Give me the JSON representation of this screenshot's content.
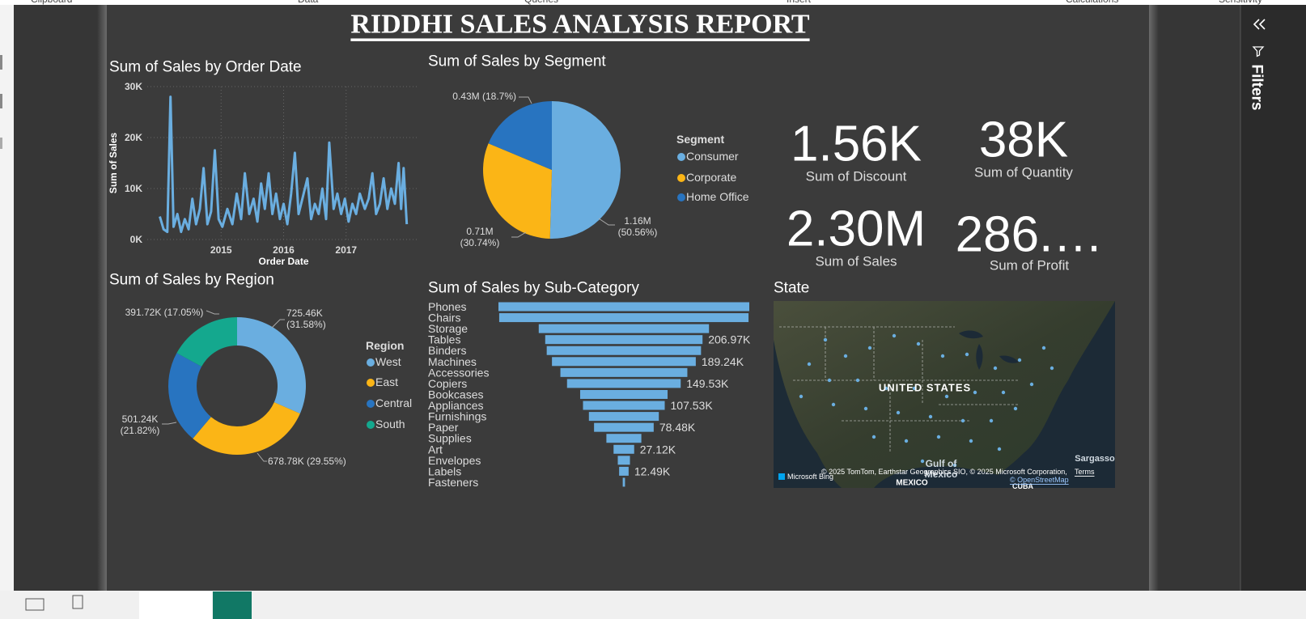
{
  "ribbon": {
    "groups": [
      "Clipboard",
      "Data",
      "Queries",
      "Insert",
      "Calculations",
      "Sensitivity"
    ]
  },
  "header": {
    "title": "RIDDHI SALES ANALYSIS REPORT"
  },
  "chart_data": [
    {
      "type": "line",
      "title": "Sum of Sales by Order Date",
      "x_label": "Order Date",
      "y_label": "Sum of Sales",
      "color": "#6aaee0",
      "x": [
        2014.02,
        2014.08,
        2014.14,
        2014.19,
        2014.24,
        2014.3,
        2014.36,
        2014.42,
        2014.48,
        2014.54,
        2014.6,
        2014.66,
        2014.72,
        2014.78,
        2014.84,
        2014.9,
        2014.96,
        2015.02,
        2015.1,
        2015.18,
        2015.25,
        2015.32,
        2015.38,
        2015.45,
        2015.52,
        2015.58,
        2015.64,
        2015.7,
        2015.76,
        2015.82,
        2015.88,
        2015.94,
        2016.0,
        2016.06,
        2016.12,
        2016.18,
        2016.24,
        2016.3,
        2016.38,
        2016.44,
        2016.5,
        2016.56,
        2016.62,
        2016.68,
        2016.73,
        2016.8,
        2016.86,
        2016.92,
        2016.98,
        2017.04,
        2017.1,
        2017.16,
        2017.22,
        2017.3,
        2017.36,
        2017.42,
        2017.48,
        2017.54,
        2017.6,
        2017.66,
        2017.72,
        2017.78,
        2017.84,
        2017.88,
        2017.92,
        2017.97
      ],
      "values": [
        4500,
        2000,
        1500,
        28000,
        2500,
        5000,
        1500,
        4000,
        2000,
        8000,
        3000,
        6000,
        14000,
        3000,
        5500,
        17500,
        4000,
        2500,
        6000,
        3000,
        9000,
        4000,
        13000,
        5000,
        8000,
        3500,
        11000,
        6000,
        13000,
        5000,
        9000,
        4000,
        7000,
        3000,
        9000,
        17000,
        5000,
        8000,
        12000,
        4000,
        7000,
        5000,
        10000,
        4000,
        19000,
        6000,
        9000,
        5000,
        8000,
        3500,
        7000,
        5000,
        9000,
        6000,
        8000,
        13000,
        5000,
        7000,
        12000,
        6000,
        10000,
        7000,
        15000,
        6000,
        14000,
        3000
      ],
      "xlim": [
        2014.0,
        2018.0
      ],
      "xticks": [
        2015,
        2016,
        2017
      ],
      "ylim": [
        0,
        30000
      ],
      "yticks": [
        {
          "value": 0,
          "label": "0K"
        },
        {
          "value": 10000,
          "label": "10K"
        },
        {
          "value": 20000,
          "label": "20K"
        },
        {
          "value": 30000,
          "label": "30K"
        }
      ],
      "grid": true
    },
    {
      "type": "pie",
      "title": "Sum of Sales by Segment",
      "legend_title": "Segment",
      "categories": [
        "Consumer",
        "Corporate",
        "Home Office"
      ],
      "values": [
        1160000,
        710000,
        430000
      ],
      "value_labels": [
        "1.16M (50.56%)",
        "0.71M (30.74%)",
        "0.43M (18.7%)"
      ],
      "colors": [
        "#6aaee0",
        "#fbb516",
        "#2874c0"
      ]
    },
    {
      "type": "donut",
      "title": "Sum of Sales by Region",
      "legend_title": "Region",
      "categories": [
        "West",
        "East",
        "Central",
        "South"
      ],
      "values": [
        725460,
        678780,
        501240,
        391720
      ],
      "value_labels": [
        "725.46K (31.58%)",
        "678.78K (29.55%)",
        "501.24K (21.82%)",
        "391.72K (17.05%)"
      ],
      "colors": [
        "#6aaee0",
        "#fbb516",
        "#2874c0",
        "#14a88e"
      ]
    },
    {
      "type": "funnel",
      "title": "Sum of Sales by Sub-Category",
      "color": "#6aaee0",
      "categories": [
        "Phones",
        "Chairs",
        "Storage",
        "Tables",
        "Binders",
        "Machines",
        "Accessories",
        "Copiers",
        "Bookcases",
        "Appliances",
        "Furnishings",
        "Paper",
        "Supplies",
        "Art",
        "Envelopes",
        "Labels",
        "Fasteners"
      ],
      "values": [
        330000,
        328000,
        224000,
        206970,
        203000,
        189240,
        167000,
        149530,
        115000,
        107530,
        92000,
        78480,
        46000,
        27120,
        16000,
        12490,
        3000
      ],
      "value_labels": [
        null,
        null,
        null,
        "206.97K",
        null,
        "189.24K",
        null,
        "149.53K",
        null,
        "107.53K",
        null,
        "78.48K",
        null,
        "27.12K",
        null,
        "12.49K",
        null
      ]
    }
  ],
  "cards": [
    {
      "value": "1.56K",
      "label": "Sum of Discount"
    },
    {
      "value": "38K",
      "label": "Sum of Quantity"
    },
    {
      "value": "2.30M",
      "label": "Sum of Sales"
    },
    {
      "value": "286.…",
      "label": "Sum of Profit"
    }
  ],
  "map": {
    "title": "State",
    "country": "UNITED STATES",
    "gulf": "Gulf of",
    "gulf2": "Mexico",
    "mexico": "MEXICO",
    "sargasso": "Sargasso",
    "cuba": "CUBA",
    "provider": "Microsoft Bing",
    "attribution": "© 2025 TomTom, Earthstar Geographics SIO, © 2025 Microsoft Corporation,",
    "terms": "Terms",
    "osm": "© OpenStreetMap"
  },
  "filters_pane": {
    "title": "Filters"
  }
}
